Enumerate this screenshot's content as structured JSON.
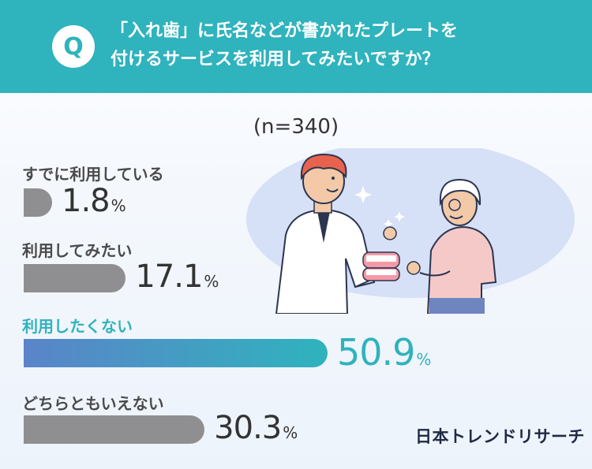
{
  "header": {
    "q_mark": "Q",
    "question_line1": "「入れ歯」に氏名などが書かれたプレートを",
    "question_line2": "付けるサービスを利用してみたいですか？"
  },
  "sample_size": "(n=340)",
  "brand": "日本トレンドリサーチ",
  "colors": {
    "header_bg": "#2fb3bd",
    "bar_gray": "#8f8f92",
    "highlight_start": "#5a84c9",
    "highlight_end": "#2fb3bd",
    "illustration_bg": "#d6e0f6"
  },
  "chart_data": {
    "type": "bar",
    "orientation": "horizontal",
    "categories": [
      "すでに利用している",
      "利用してみたい",
      "利用したくない",
      "どちらともいえない"
    ],
    "values": [
      1.8,
      17.1,
      50.9,
      30.3
    ],
    "value_labels": [
      "1.8",
      "17.1",
      "50.9",
      "30.3"
    ],
    "unit": "%",
    "highlighted_index": 2,
    "xlim": [
      0,
      50.9
    ]
  }
}
